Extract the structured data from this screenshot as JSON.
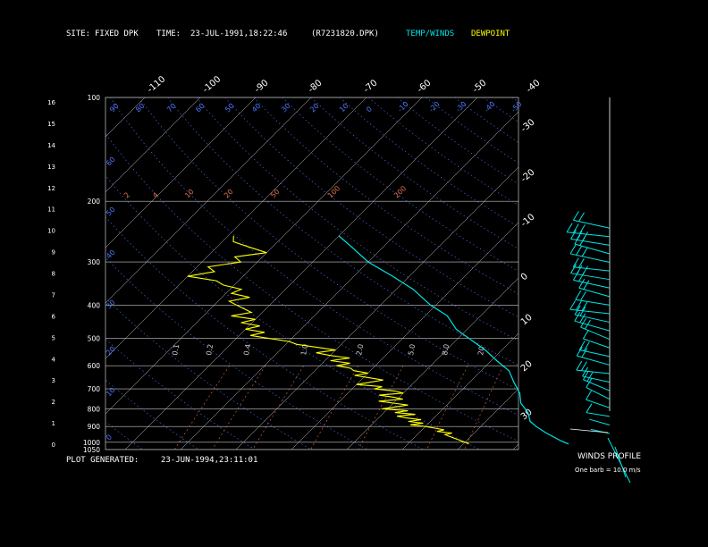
{
  "header": {
    "site_label": "SITE:",
    "site_value": "FIXED DPK",
    "time_label": "TIME:",
    "time_value": "23-JUL-1991,18:22:46",
    "file_name": "(R7231820.DPK)",
    "legend_temp": "TEMP/WINDS",
    "legend_dewpoint": "DEWPOINT"
  },
  "footer": {
    "plot_generated_label": "PLOT GENERATED:",
    "plot_generated_value": "23-JUN-1994,23:11:01",
    "winds_title": "WINDS PROFILE",
    "barb_note": "One barb = 10.0 m/s"
  },
  "colors": {
    "background": "#000000",
    "grid": "#c8c8c8",
    "temp": "#00e5e5",
    "dewpoint": "#ffff00",
    "dry_adiabat": "#5078ff",
    "mixing_ratio": "#e07050",
    "moist_adiabat": "#888888"
  },
  "chart_data": {
    "type": "line",
    "pressure_axis": {
      "ticks": [
        "100",
        "200",
        "300",
        "400",
        "500",
        "600",
        "700",
        "800",
        "900",
        "1000",
        "1050"
      ]
    },
    "height_axis": {
      "ticks": [
        "16",
        "15",
        "14",
        "13",
        "12",
        "11",
        "10",
        "9",
        "8",
        "7",
        "6",
        "5",
        "4",
        "3",
        "2",
        "1",
        "0"
      ]
    },
    "temp_ticks_top": [
      "-110",
      "-100",
      "-90",
      "-80",
      "-70",
      "-60",
      "-50",
      "-40"
    ],
    "temp_ticks_right": [
      "-30",
      "-20",
      "-10",
      "0",
      "10",
      "20",
      "30"
    ],
    "dry_adiabat_labels": [
      "60",
      "50",
      "40",
      "30",
      "20",
      "10",
      "0",
      "-10",
      "-20",
      "-30",
      "-40",
      "-50"
    ],
    "top_adiabat_labels": [
      "90",
      "80",
      "70",
      "60",
      "50",
      "40",
      "30",
      "20",
      "10",
      "0",
      "-10",
      "-20",
      "-30",
      "-40",
      "-50"
    ],
    "mixing_ratio_labels": [
      "2",
      "4",
      "10",
      "20",
      "50",
      "100",
      "200"
    ],
    "lower_labels": [
      "0.1",
      "0.2",
      "0.4",
      "1.0",
      "2.0",
      "5.0",
      "8.0",
      "20"
    ],
    "series": [
      {
        "name": "TEMP/WINDS",
        "pressure_hpa": [
          252,
          270,
          300,
          330,
          360,
          400,
          430,
          470,
          500,
          540,
          580,
          620,
          670,
          720,
          770,
          820,
          870,
          900,
          940,
          990,
          1012
        ],
        "temperature_c": [
          -50,
          -46,
          -40,
          -33,
          -27,
          -21,
          -16,
          -12,
          -8,
          -3,
          1,
          5,
          8,
          11,
          13,
          16,
          18,
          20,
          23,
          27,
          29
        ]
      },
      {
        "name": "DEWPOINT",
        "pressure_hpa": [
          252,
          262,
          272,
          282,
          290,
          300,
          310,
          320,
          330,
          340,
          350,
          360,
          370,
          380,
          390,
          400,
          410,
          420,
          430,
          440,
          450,
          460,
          470,
          480,
          490,
          500,
          510,
          520,
          530,
          540,
          550,
          560,
          570,
          580,
          590,
          600,
          610,
          620,
          630,
          640,
          650,
          660,
          670,
          680,
          690,
          700,
          710,
          720,
          730,
          740,
          750,
          760,
          770,
          780,
          790,
          800,
          810,
          820,
          830,
          840,
          850,
          860,
          870,
          880,
          890,
          900,
          910,
          920,
          930,
          940,
          950,
          960,
          970,
          980,
          990,
          1000,
          1010
        ],
        "dewpoint_c": [
          -69,
          -68,
          -64,
          -60,
          -65,
          -63,
          -68,
          -66,
          -70,
          -64,
          -62,
          -58,
          -59,
          -55,
          -58,
          -56,
          -54,
          -52,
          -55,
          -50,
          -52,
          -48,
          -50,
          -46,
          -48,
          -44,
          -40,
          -38,
          -34,
          -30,
          -33,
          -30,
          -26,
          -29,
          -25,
          -27,
          -24,
          -23,
          -20,
          -22,
          -19,
          -16,
          -18,
          -20,
          -15,
          -16,
          -12,
          -10,
          -14,
          -11,
          -9,
          -13,
          -10,
          -7,
          -9,
          -11,
          -6,
          -8,
          -4,
          -7,
          -5,
          -2,
          -4,
          -1,
          -3,
          0,
          2,
          4,
          3,
          6,
          5,
          6,
          7,
          8,
          9,
          10,
          11
        ]
      }
    ],
    "winds_profile": {
      "height_km": [
        0.5,
        0.9,
        1.3,
        1.7,
        2.1,
        2.5,
        2.9,
        3.3,
        3.7,
        4.1,
        4.5,
        4.9,
        5.3,
        5.7,
        6.1,
        6.5,
        6.9,
        7.3,
        7.7,
        8.1,
        8.5,
        8.9,
        9.3,
        9.7,
        10.1
      ],
      "direction_deg": [
        250,
        245,
        255,
        240,
        230,
        235,
        250,
        260,
        245,
        250,
        240,
        235,
        245,
        250,
        260,
        255,
        245,
        250,
        255,
        260,
        250,
        245,
        255,
        260,
        250
      ],
      "speed_ms": [
        5,
        8,
        10,
        14,
        18,
        20,
        16,
        22,
        25,
        20,
        18,
        24,
        28,
        26,
        30,
        24,
        22,
        28,
        30,
        26,
        32,
        28,
        30,
        34,
        28
      ]
    }
  }
}
